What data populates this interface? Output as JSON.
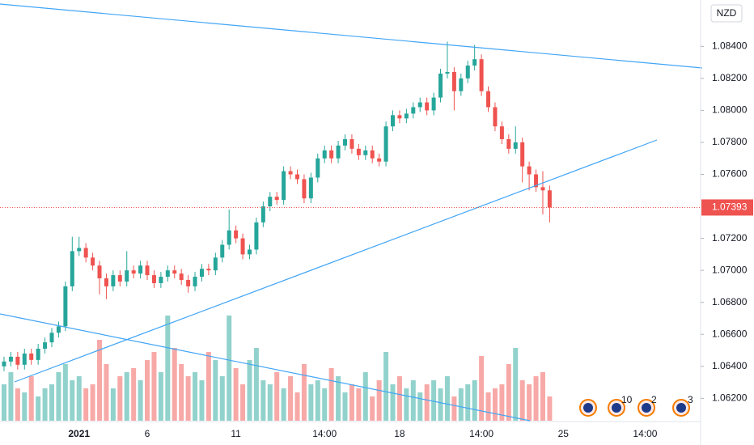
{
  "chart_data": {
    "type": "candlestick",
    "symbol_currency": "NZD",
    "categories": [
      null,
      null,
      null,
      null,
      null,
      null,
      null,
      null,
      null,
      null,
      null,
      "2021",
      null,
      null,
      null,
      null,
      null,
      null,
      null,
      null,
      null,
      "6",
      null,
      null,
      null,
      null,
      null,
      null,
      null,
      null,
      null,
      null,
      null,
      null,
      "11",
      null,
      null,
      null,
      null,
      null,
      null,
      null,
      null,
      null,
      null,
      null,
      null,
      "14:00",
      null,
      null,
      null,
      null,
      null,
      null,
      null,
      null,
      null,
      null,
      "18",
      null,
      null,
      null,
      null,
      null,
      null,
      null,
      null,
      null,
      null,
      null,
      "14:00",
      null,
      null,
      null,
      null,
      null,
      null,
      null,
      null,
      null,
      null,
      null,
      "25",
      null,
      null,
      null,
      null,
      null,
      null,
      null,
      null,
      null,
      null,
      null,
      "14:00"
    ],
    "open": [
      1.064,
      1.0643,
      1.0646,
      1.0641,
      1.0648,
      1.0644,
      1.0651,
      1.0655,
      1.0661,
      1.0665,
      1.069,
      1.0712,
      1.0714,
      1.0708,
      1.0703,
      1.0695,
      1.069,
      1.0697,
      1.0693,
      1.07,
      1.0698,
      1.0703,
      1.0697,
      1.0692,
      1.0696,
      1.07,
      1.0698,
      1.0694,
      1.069,
      1.0696,
      1.0701,
      1.07,
      1.0708,
      1.0716,
      1.0725,
      1.072,
      1.071,
      1.0713,
      1.073,
      1.074,
      1.0746,
      1.0744,
      1.0762,
      1.076,
      1.0757,
      1.0745,
      1.0758,
      1.077,
      1.0775,
      1.077,
      1.0778,
      1.0782,
      1.0776,
      1.0772,
      1.0775,
      1.077,
      1.0768,
      1.079,
      1.0797,
      1.0795,
      1.0798,
      1.0802,
      1.0805,
      1.08,
      1.0808,
      1.0823,
      1.0824,
      1.0812,
      1.082,
      1.0828,
      1.0832,
      1.0812,
      1.0802,
      1.079,
      1.0782,
      1.0776,
      1.078,
      1.0765,
      1.076,
      1.0752,
      1.075,
      null,
      null,
      null,
      null,
      null,
      null,
      null,
      null,
      null,
      null,
      null,
      null,
      null,
      null
    ],
    "high": [
      1.0646,
      1.0649,
      1.0649,
      1.0651,
      1.0651,
      1.0654,
      1.0658,
      1.0664,
      1.0668,
      1.0693,
      1.0721,
      1.0721,
      1.0717,
      1.0711,
      1.0706,
      1.0698,
      1.07,
      1.07,
      1.0712,
      1.0703,
      1.0706,
      1.0706,
      1.07,
      1.0699,
      1.0703,
      1.0703,
      1.0701,
      1.0697,
      1.0699,
      1.0704,
      1.0704,
      1.0711,
      1.0719,
      1.0738,
      1.0728,
      1.0723,
      1.0716,
      1.0733,
      1.0743,
      1.0749,
      1.0749,
      1.0765,
      1.0765,
      1.0763,
      1.076,
      1.0761,
      1.0773,
      1.0778,
      1.0778,
      1.0781,
      1.0785,
      1.0785,
      1.0779,
      1.0778,
      1.0778,
      1.0773,
      1.0793,
      1.08,
      1.08,
      1.0801,
      1.0805,
      1.0808,
      1.0808,
      1.0811,
      1.0826,
      1.0843,
      1.0827,
      1.0823,
      1.0831,
      1.0841,
      1.0835,
      1.0815,
      1.0805,
      1.0793,
      1.0785,
      1.079,
      1.0783,
      1.0768,
      1.0763,
      1.0762,
      1.0753,
      null,
      null,
      null,
      null,
      null,
      null,
      null,
      null,
      null,
      null,
      null,
      null,
      null,
      null
    ],
    "low": [
      1.0637,
      1.064,
      1.0638,
      1.0638,
      1.0641,
      1.0641,
      1.0648,
      1.0652,
      1.0658,
      1.0662,
      1.0687,
      1.0709,
      1.0705,
      1.07,
      1.0685,
      1.0682,
      1.0687,
      1.069,
      1.069,
      1.0695,
      1.0695,
      1.0694,
      1.0689,
      1.0689,
      1.0693,
      1.0695,
      1.0691,
      1.0686,
      1.0687,
      1.0693,
      1.0697,
      1.0697,
      1.0705,
      1.0713,
      1.0717,
      1.0707,
      1.0707,
      1.071,
      1.0727,
      1.0737,
      1.0741,
      1.0741,
      1.0757,
      1.0754,
      1.0742,
      1.0742,
      1.0755,
      1.0767,
      1.0767,
      1.0767,
      1.0775,
      1.0773,
      1.0769,
      1.0769,
      1.0767,
      1.0765,
      1.0765,
      1.0787,
      1.0792,
      1.0792,
      1.0795,
      1.0799,
      1.0797,
      1.0797,
      1.0805,
      1.082,
      1.08,
      1.0809,
      1.0817,
      1.0825,
      1.0809,
      1.0799,
      1.0787,
      1.0779,
      1.0773,
      1.0773,
      1.0755,
      1.075,
      1.0749,
      1.0735,
      1.073,
      null,
      null,
      null,
      null,
      null,
      null,
      null,
      null,
      null,
      null,
      null,
      null,
      null,
      null
    ],
    "close": [
      1.0643,
      1.0646,
      1.0641,
      1.0648,
      1.0644,
      1.0651,
      1.0655,
      1.0661,
      1.0665,
      1.069,
      1.0712,
      1.0714,
      1.0708,
      1.0703,
      1.0695,
      1.069,
      1.0697,
      1.0693,
      1.07,
      1.0698,
      1.0703,
      1.0697,
      1.0692,
      1.0696,
      1.07,
      1.0698,
      1.0694,
      1.069,
      1.0696,
      1.0701,
      1.07,
      1.0708,
      1.0716,
      1.0725,
      1.072,
      1.071,
      1.0713,
      1.073,
      1.074,
      1.0746,
      1.0744,
      1.0762,
      1.076,
      1.0757,
      1.0745,
      1.0758,
      1.077,
      1.0775,
      1.077,
      1.0778,
      1.0782,
      1.0776,
      1.0772,
      1.0775,
      1.077,
      1.0768,
      1.079,
      1.0797,
      1.0795,
      1.0798,
      1.0802,
      1.0805,
      1.08,
      1.0808,
      1.0823,
      1.0824,
      1.0812,
      1.082,
      1.0828,
      1.0832,
      1.0812,
      1.0802,
      1.079,
      1.0782,
      1.0776,
      1.078,
      1.0765,
      1.076,
      1.0752,
      1.075,
      1.07393,
      null,
      null,
      null,
      null,
      null,
      null,
      null,
      null,
      null,
      null,
      null,
      null,
      null,
      null
    ],
    "volume": [
      45,
      60,
      40,
      35,
      55,
      30,
      40,
      45,
      60,
      70,
      50,
      55,
      40,
      45,
      100,
      70,
      40,
      55,
      60,
      65,
      50,
      75,
      85,
      60,
      130,
      90,
      70,
      55,
      60,
      50,
      85,
      75,
      55,
      130,
      65,
      45,
      75,
      90,
      50,
      45,
      60,
      40,
      55,
      35,
      70,
      45,
      50,
      40,
      65,
      55,
      35,
      45,
      40,
      60,
      30,
      50,
      85,
      45,
      55,
      40,
      50,
      35,
      45,
      50,
      40,
      55,
      30,
      40,
      45,
      50,
      80,
      35,
      40,
      45,
      70,
      90,
      50,
      45,
      55,
      60,
      30,
      null,
      null,
      null,
      null,
      null,
      null,
      null,
      null,
      null,
      null,
      null,
      null,
      null,
      null
    ],
    "up_color": "#26a69a",
    "down_color": "#ef5350",
    "ylim": [
      1.0606,
      1.0869
    ],
    "yticks": [
      {
        "value": 1.062,
        "label": "1.06200"
      },
      {
        "value": 1.064,
        "label": "1.06400"
      },
      {
        "value": 1.066,
        "label": "1.06600"
      },
      {
        "value": 1.068,
        "label": "1.06800"
      },
      {
        "value": 1.07,
        "label": "1.07000"
      },
      {
        "value": 1.072,
        "label": "1.07200"
      },
      {
        "value": 1.076,
        "label": "1.07600"
      },
      {
        "value": 1.078,
        "label": "1.07800"
      },
      {
        "value": 1.08,
        "label": "1.08000"
      },
      {
        "value": 1.082,
        "label": "1.08200"
      },
      {
        "value": 1.084,
        "label": "1.08400"
      }
    ],
    "event_counts": [
      10,
      2,
      3
    ]
  }
}
